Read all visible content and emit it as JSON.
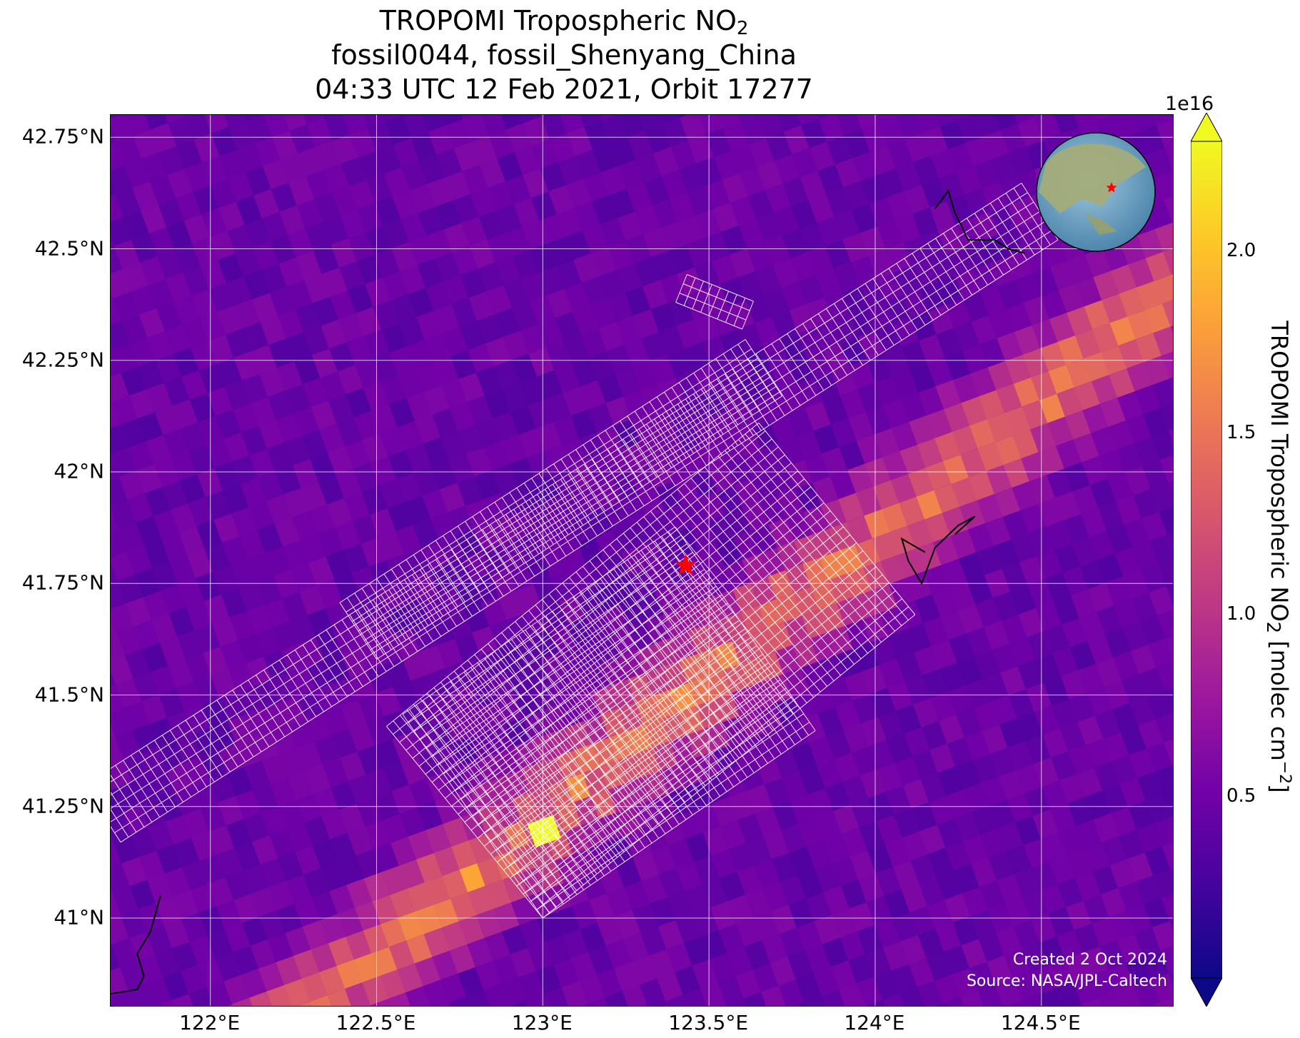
{
  "title": {
    "line1_main": "TROPOMI Tropospheric NO",
    "line1_sub": "2",
    "line2": "fossil0044, fossil_Shenyang_China",
    "line3": "04:33 UTC 12 Feb 2021, Orbit 17277"
  },
  "map": {
    "lon_range": [
      121.7,
      124.9
    ],
    "lat_range": [
      40.8,
      42.8
    ],
    "lat_ticks": [
      {
        "value": 42.75,
        "label": "42.75°N"
      },
      {
        "value": 42.5,
        "label": "42.5°N"
      },
      {
        "value": 42.25,
        "label": "42.25°N"
      },
      {
        "value": 42.0,
        "label": "42°N"
      },
      {
        "value": 41.75,
        "label": "41.75°N"
      },
      {
        "value": 41.5,
        "label": "41.5°N"
      },
      {
        "value": 41.25,
        "label": "41.25°N"
      },
      {
        "value": 41.0,
        "label": "41°N"
      }
    ],
    "lon_ticks": [
      {
        "value": 122.0,
        "label": "122°E"
      },
      {
        "value": 122.5,
        "label": "122.5°E"
      },
      {
        "value": 123.0,
        "label": "123°E"
      },
      {
        "value": 123.5,
        "label": "123.5°E"
      },
      {
        "value": 124.0,
        "label": "124°E"
      },
      {
        "value": 124.5,
        "label": "124.5°E"
      }
    ],
    "site_marker": {
      "lon": 123.43,
      "lat": 41.79,
      "color": "#ff0000",
      "icon": "star-icon"
    },
    "gridline_color": "#ffffff",
    "coastline_color": "#000000",
    "footprint_color": "#ffffff",
    "inset_globe": {
      "icon": "globe-icon",
      "marker_icon": "star-icon",
      "marker_color": "#ff0000"
    }
  },
  "colorbar": {
    "exponent_label": "1e16",
    "colormap": "plasma",
    "ticks": [
      {
        "value": 0.5,
        "label": "0.5"
      },
      {
        "value": 1.0,
        "label": "1.0"
      },
      {
        "value": 1.5,
        "label": "1.5"
      },
      {
        "value": 2.0,
        "label": "2.0"
      }
    ],
    "range": [
      0.0,
      2.3
    ],
    "extend": "both",
    "title_main": "TROPOMI Tropospheric NO",
    "title_sub": "2",
    "title_unit_pre": " [molec cm",
    "title_unit_sup": "−2",
    "title_unit_post": "]"
  },
  "credits": {
    "line1": "Created 2 Oct 2024",
    "line2": "Source: NASA/JPL-Caltech"
  }
}
